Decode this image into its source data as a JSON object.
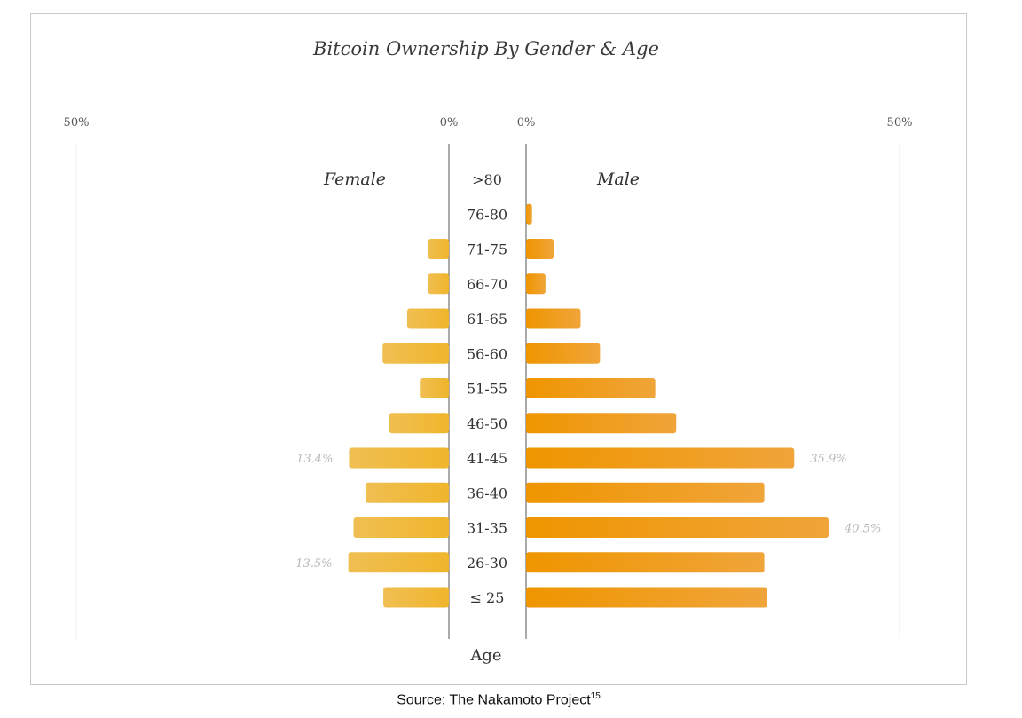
{
  "chart_data": {
    "type": "bar",
    "title": "Bitcoin Ownership By Gender & Age",
    "xlabel": "Age",
    "axis_tick_labels": {
      "left_max": "50%",
      "left_zero": "0%",
      "right_zero": "0%",
      "right_max": "50%"
    },
    "xlim": [
      0,
      50
    ],
    "categories": [
      ">80",
      "76-80",
      "71-75",
      "66-70",
      "61-65",
      "56-60",
      "51-55",
      "46-50",
      "41-45",
      "36-40",
      "31-35",
      "26-30",
      "≤ 25"
    ],
    "series": [
      {
        "name": "Female",
        "color": "#f0bb3a",
        "values": [
          0,
          0,
          2.8,
          2.8,
          5.6,
          8.9,
          3.9,
          8.0,
          13.4,
          11.2,
          12.8,
          13.5,
          8.8
        ],
        "labels": [
          "",
          "",
          "",
          "",
          "",
          "",
          "",
          "",
          "13.4%",
          "",
          "",
          "13.5%",
          ""
        ]
      },
      {
        "name": "Male",
        "color": "#ef9a0a",
        "values": [
          0,
          0.8,
          3.7,
          2.6,
          7.3,
          9.9,
          17.3,
          20.1,
          35.9,
          31.9,
          40.5,
          31.9,
          32.3
        ],
        "labels": [
          "",
          "",
          "",
          "",
          "",
          "",
          "",
          "",
          "35.9%",
          "",
          "40.5%",
          "",
          ""
        ]
      }
    ],
    "grid": false,
    "legend": "in-plot labels"
  },
  "footer": {
    "source_text": "Source: The Nakamoto Project",
    "source_sup": "15"
  }
}
